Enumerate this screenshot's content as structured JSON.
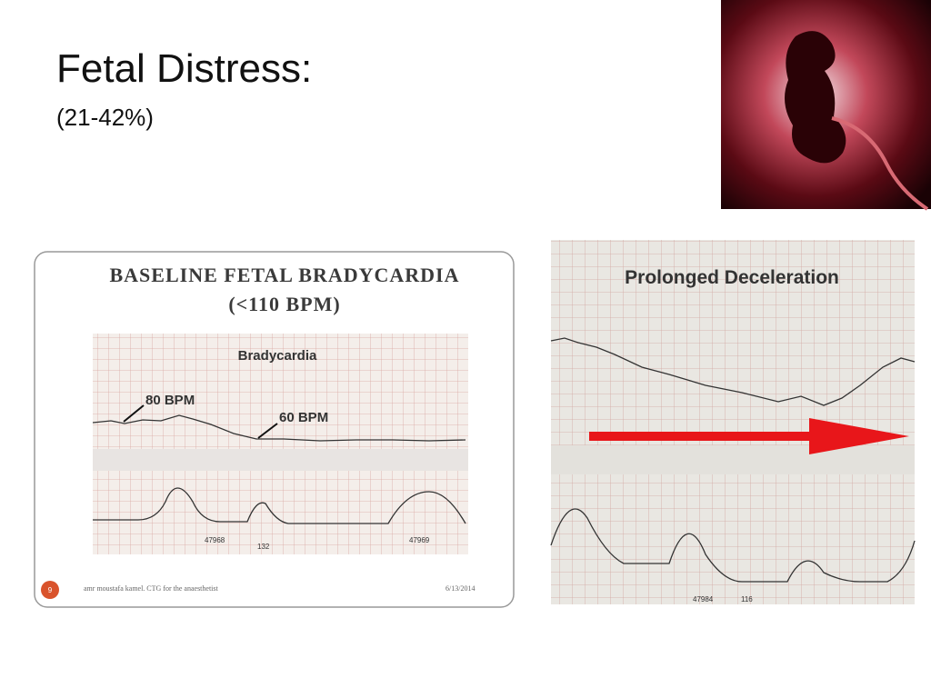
{
  "slide": {
    "title": "Fetal Distress:",
    "subtitle": "(21-42%)"
  },
  "left_figure": {
    "heading_line1": "Baseline Fetal Bradycardia",
    "heading_line2": "(<110 BPM)",
    "trace_label": "Bradycardia",
    "annotation_1": "80 BPM",
    "annotation_2": "60 BPM",
    "paper_number_1": "47968",
    "paper_number_2": "47969",
    "pages_left": "132",
    "footer_author": "amr moustafa kamel. CTG for the anaesthetist",
    "footer_date": "6/13/2014",
    "slide_number": "9"
  },
  "right_figure": {
    "heading": "Prolonged Deceleration",
    "paper_number": "47984",
    "pages_left": "116"
  }
}
